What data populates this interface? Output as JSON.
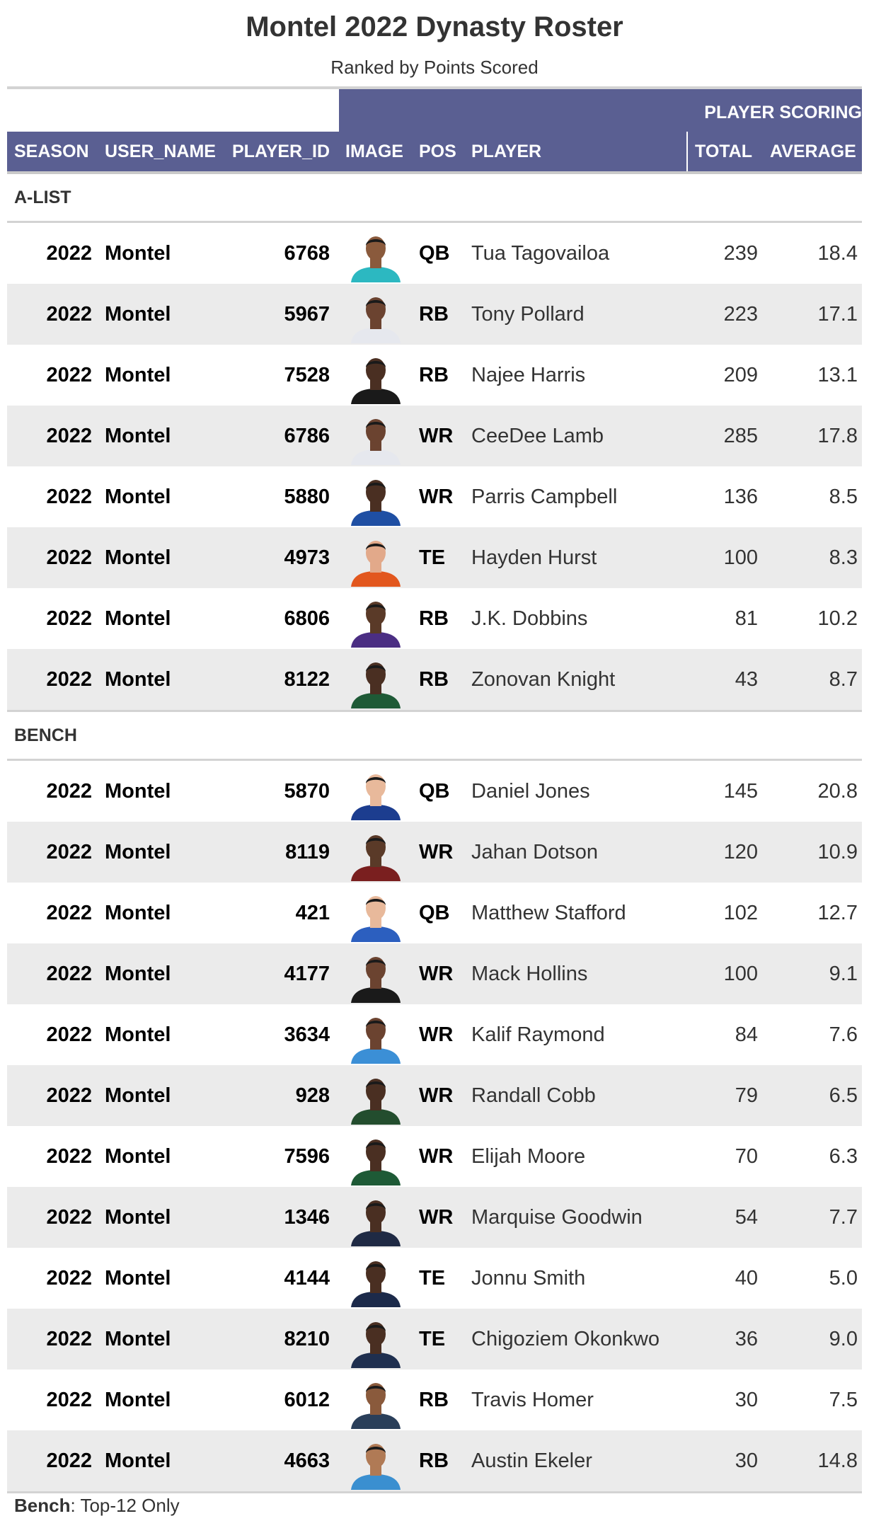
{
  "title": "Montel 2022 Dynasty Roster",
  "subtitle": "Ranked by Points Scored",
  "spanner_label": "PLAYER SCORING",
  "columns": {
    "season": "SEASON",
    "user_name": "USER_NAME",
    "player_id": "PLAYER_ID",
    "image": "IMAGE",
    "pos": "POS",
    "player": "PLAYER",
    "total": "TOTAL",
    "average": "AVERAGE"
  },
  "colors": {
    "header_bg": "#5a5f92",
    "row_shade": "#ebebeb",
    "rule": "#d3d3d3"
  },
  "groups": [
    {
      "label": "A-LIST",
      "rows": [
        {
          "season": "2022",
          "user": "Montel",
          "player_id": "6768",
          "pos": "QB",
          "player": "Tua Tagovailoa",
          "total": "239",
          "average": "18.4",
          "jersey": "#2cb8c1",
          "skin": "#8a5a3c"
        },
        {
          "season": "2022",
          "user": "Montel",
          "player_id": "5967",
          "pos": "RB",
          "player": "Tony Pollard",
          "total": "223",
          "average": "17.1",
          "jersey": "#e6e8ee",
          "skin": "#6b4330"
        },
        {
          "season": "2022",
          "user": "Montel",
          "player_id": "7528",
          "pos": "RB",
          "player": "Najee Harris",
          "total": "209",
          "average": "13.1",
          "jersey": "#1a1a1a",
          "skin": "#4a2f22"
        },
        {
          "season": "2022",
          "user": "Montel",
          "player_id": "6786",
          "pos": "WR",
          "player": "CeeDee Lamb",
          "total": "285",
          "average": "17.8",
          "jersey": "#e6e8ee",
          "skin": "#6b4330"
        },
        {
          "season": "2022",
          "user": "Montel",
          "player_id": "5880",
          "pos": "WR",
          "player": "Parris Campbell",
          "total": "136",
          "average": "8.5",
          "jersey": "#1f4fa3",
          "skin": "#4a2f22"
        },
        {
          "season": "2022",
          "user": "Montel",
          "player_id": "4973",
          "pos": "TE",
          "player": "Hayden Hurst",
          "total": "100",
          "average": "8.3",
          "jersey": "#e2571e",
          "skin": "#e2a98a"
        },
        {
          "season": "2022",
          "user": "Montel",
          "player_id": "6806",
          "pos": "RB",
          "player": "J.K. Dobbins",
          "total": "81",
          "average": "10.2",
          "jersey": "#4b2e83",
          "skin": "#5a3a28"
        },
        {
          "season": "2022",
          "user": "Montel",
          "player_id": "8122",
          "pos": "RB",
          "player": "Zonovan Knight",
          "total": "43",
          "average": "8.7",
          "jersey": "#1e5a36",
          "skin": "#4a2f22"
        }
      ]
    },
    {
      "label": "BENCH",
      "rows": [
        {
          "season": "2022",
          "user": "Montel",
          "player_id": "5870",
          "pos": "QB",
          "player": "Daniel Jones",
          "total": "145",
          "average": "20.8",
          "jersey": "#1c3d8f",
          "skin": "#e8b99b"
        },
        {
          "season": "2022",
          "user": "Montel",
          "player_id": "8119",
          "pos": "WR",
          "player": "Jahan Dotson",
          "total": "120",
          "average": "10.9",
          "jersey": "#7a1f1f",
          "skin": "#5a3a28"
        },
        {
          "season": "2022",
          "user": "Montel",
          "player_id": "421",
          "pos": "QB",
          "player": "Matthew Stafford",
          "total": "102",
          "average": "12.7",
          "jersey": "#2c5fbf",
          "skin": "#e8b99b"
        },
        {
          "season": "2022",
          "user": "Montel",
          "player_id": "4177",
          "pos": "WR",
          "player": "Mack Hollins",
          "total": "100",
          "average": "9.1",
          "jersey": "#1a1a1a",
          "skin": "#6b4330"
        },
        {
          "season": "2022",
          "user": "Montel",
          "player_id": "3634",
          "pos": "WR",
          "player": "Kalif Raymond",
          "total": "84",
          "average": "7.6",
          "jersey": "#3b8fd6",
          "skin": "#6b4330"
        },
        {
          "season": "2022",
          "user": "Montel",
          "player_id": "928",
          "pos": "WR",
          "player": "Randall Cobb",
          "total": "79",
          "average": "6.5",
          "jersey": "#234d2e",
          "skin": "#4a2f22"
        },
        {
          "season": "2022",
          "user": "Montel",
          "player_id": "7596",
          "pos": "WR",
          "player": "Elijah Moore",
          "total": "70",
          "average": "6.3",
          "jersey": "#1e5a36",
          "skin": "#4a2f22"
        },
        {
          "season": "2022",
          "user": "Montel",
          "player_id": "1346",
          "pos": "WR",
          "player": "Marquise Goodwin",
          "total": "54",
          "average": "7.7",
          "jersey": "#1f2a44",
          "skin": "#4a2f22"
        },
        {
          "season": "2022",
          "user": "Montel",
          "player_id": "4144",
          "pos": "TE",
          "player": "Jonnu Smith",
          "total": "40",
          "average": "5.0",
          "jersey": "#1c2a4a",
          "skin": "#4a2f22"
        },
        {
          "season": "2022",
          "user": "Montel",
          "player_id": "8210",
          "pos": "TE",
          "player": "Chigoziem Okonkwo",
          "total": "36",
          "average": "9.0",
          "jersey": "#1f2f4f",
          "skin": "#4a2f22"
        },
        {
          "season": "2022",
          "user": "Montel",
          "player_id": "6012",
          "pos": "RB",
          "player": "Travis Homer",
          "total": "30",
          "average": "7.5",
          "jersey": "#2a3f5a",
          "skin": "#8a5a3c"
        },
        {
          "season": "2022",
          "user": "Montel",
          "player_id": "4663",
          "pos": "RB",
          "player": "Austin Ekeler",
          "total": "30",
          "average": "14.8",
          "jersey": "#3a8fd0",
          "skin": "#b07a55"
        }
      ]
    }
  ],
  "footnote": {
    "bold": "Bench",
    "text": ": Top-12 Only"
  }
}
